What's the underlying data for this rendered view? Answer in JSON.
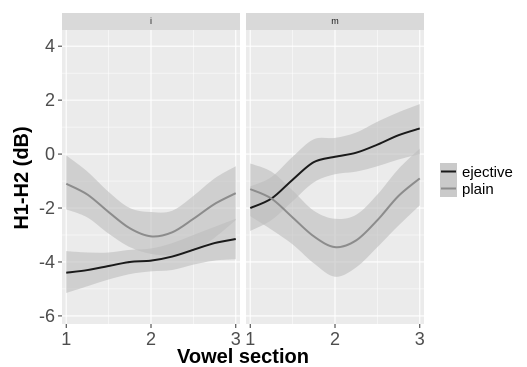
{
  "chart_data": {
    "type": "line",
    "xlabel": "Vowel section",
    "ylabel": "H1-H2 (dB)",
    "xlim": [
      0.95,
      3.05
    ],
    "ylim": [
      -6.3,
      4.6
    ],
    "x_ticks": [
      1,
      2,
      3
    ],
    "x_tick_labels": [
      "1",
      "2",
      "3"
    ],
    "y_ticks": [
      4,
      2,
      0,
      -2,
      -4,
      -6
    ],
    "y_tick_labels": [
      "4",
      "2",
      "0",
      "-2",
      "-4",
      "-6"
    ],
    "grid": true,
    "legend_position": "right",
    "confidence_bands": true,
    "colors": {
      "panel_bg": "#ebebeb",
      "strip_bg": "#d9d9d9",
      "grid": "#ffffff",
      "ribbon": "#bdbdbd",
      "ejective": "#1a1a1a",
      "plain": "#8c8c8c"
    },
    "legend": [
      {
        "key": "ejective",
        "label": "ejective"
      },
      {
        "key": "plain",
        "label": "plain"
      }
    ],
    "facets": [
      {
        "label": "i",
        "series": [
          {
            "name": "ejective",
            "x": [
              1,
              1.25,
              1.5,
              1.75,
              2,
              2.25,
              2.5,
              2.75,
              3
            ],
            "y": [
              -4.4,
              -4.3,
              -4.15,
              -4.0,
              -3.95,
              -3.8,
              -3.55,
              -3.3,
              -3.15
            ],
            "lower": [
              -5.15,
              -4.9,
              -4.65,
              -4.45,
              -4.35,
              -4.3,
              -4.1,
              -3.95,
              -3.9
            ],
            "upper": [
              -3.6,
              -3.65,
              -3.65,
              -3.55,
              -3.5,
              -3.3,
              -3.0,
              -2.7,
              -2.4
            ]
          },
          {
            "name": "plain",
            "x": [
              1,
              1.25,
              1.5,
              1.75,
              2,
              2.25,
              2.5,
              2.75,
              3
            ],
            "y": [
              -1.1,
              -1.5,
              -2.15,
              -2.75,
              -3.05,
              -2.9,
              -2.4,
              -1.85,
              -1.45
            ],
            "lower": [
              -2.05,
              -2.35,
              -2.95,
              -3.45,
              -3.7,
              -3.75,
              -3.6,
              -3.1,
              -2.45
            ],
            "upper": [
              -0.05,
              -0.65,
              -1.4,
              -2.0,
              -2.15,
              -2.1,
              -1.55,
              -0.9,
              -0.45
            ]
          }
        ]
      },
      {
        "label": "m",
        "series": [
          {
            "name": "ejective",
            "x": [
              1,
              1.25,
              1.5,
              1.75,
              2,
              2.25,
              2.5,
              2.75,
              3
            ],
            "y": [
              -2.0,
              -1.65,
              -0.95,
              -0.3,
              -0.1,
              0.05,
              0.35,
              0.7,
              0.95
            ],
            "lower": [
              -2.85,
              -2.45,
              -1.75,
              -1.05,
              -0.75,
              -0.65,
              -0.45,
              -0.2,
              0.0
            ],
            "upper": [
              -1.2,
              -0.85,
              -0.1,
              0.55,
              0.6,
              0.8,
              1.2,
              1.55,
              1.85
            ]
          },
          {
            "name": "plain",
            "x": [
              1,
              1.25,
              1.5,
              1.75,
              2,
              2.25,
              2.5,
              2.75,
              3
            ],
            "y": [
              -1.3,
              -1.65,
              -2.35,
              -3.05,
              -3.45,
              -3.2,
              -2.45,
              -1.55,
              -0.9
            ],
            "lower": [
              -2.3,
              -2.8,
              -3.35,
              -4.05,
              -4.55,
              -4.2,
              -3.45,
              -2.65,
              -1.9
            ],
            "upper": [
              -0.35,
              -0.65,
              -1.35,
              -2.1,
              -2.4,
              -2.25,
              -1.5,
              -0.55,
              0.2
            ]
          }
        ]
      }
    ]
  }
}
